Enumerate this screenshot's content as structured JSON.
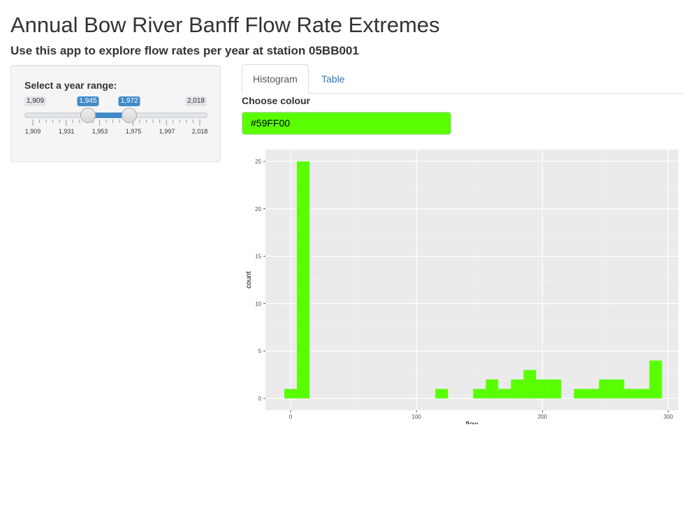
{
  "header": {
    "title": "Annual Bow River Banff Flow Rate Extremes",
    "subtitle": "Use this app to explore flow rates per year at station 05BB001"
  },
  "sidebar": {
    "slider": {
      "label": "Select a year range:",
      "min_label": "1,909",
      "max_label": "2,018",
      "from_label": "1,945",
      "to_label": "1,972",
      "min": 1909,
      "max": 2018,
      "from": 1945,
      "to": 1972,
      "tick_labels": [
        "1,909",
        "1,931",
        "1,953",
        "1,975",
        "1,997",
        "2,018"
      ],
      "accent_color": "#428bca"
    }
  },
  "main": {
    "tabs": [
      {
        "label": "Histogram",
        "active": true
      },
      {
        "label": "Table",
        "active": false
      }
    ],
    "colour": {
      "label": "Choose colour",
      "value": "#59FF00"
    }
  },
  "chart_data": {
    "type": "bar",
    "title": "",
    "xlabel": "flow",
    "ylabel": "count",
    "xlim": [
      -20,
      308
    ],
    "ylim": [
      -1.25,
      26.25
    ],
    "x_ticks": [
      0,
      100,
      200,
      300
    ],
    "y_ticks": [
      0,
      5,
      10,
      15,
      20,
      25
    ],
    "bin_width": 10,
    "bar_color": "#59FF00",
    "panel_color": "#EBEBEB",
    "grid": true,
    "bins": [
      {
        "x": 0,
        "count": 1
      },
      {
        "x": 10,
        "count": 25
      },
      {
        "x": 120,
        "count": 1
      },
      {
        "x": 150,
        "count": 1
      },
      {
        "x": 160,
        "count": 2
      },
      {
        "x": 170,
        "count": 1
      },
      {
        "x": 180,
        "count": 2
      },
      {
        "x": 190,
        "count": 3
      },
      {
        "x": 200,
        "count": 2
      },
      {
        "x": 210,
        "count": 2
      },
      {
        "x": 230,
        "count": 1
      },
      {
        "x": 240,
        "count": 1
      },
      {
        "x": 250,
        "count": 2
      },
      {
        "x": 260,
        "count": 2
      },
      {
        "x": 270,
        "count": 1
      },
      {
        "x": 280,
        "count": 1
      },
      {
        "x": 290,
        "count": 4
      }
    ]
  }
}
